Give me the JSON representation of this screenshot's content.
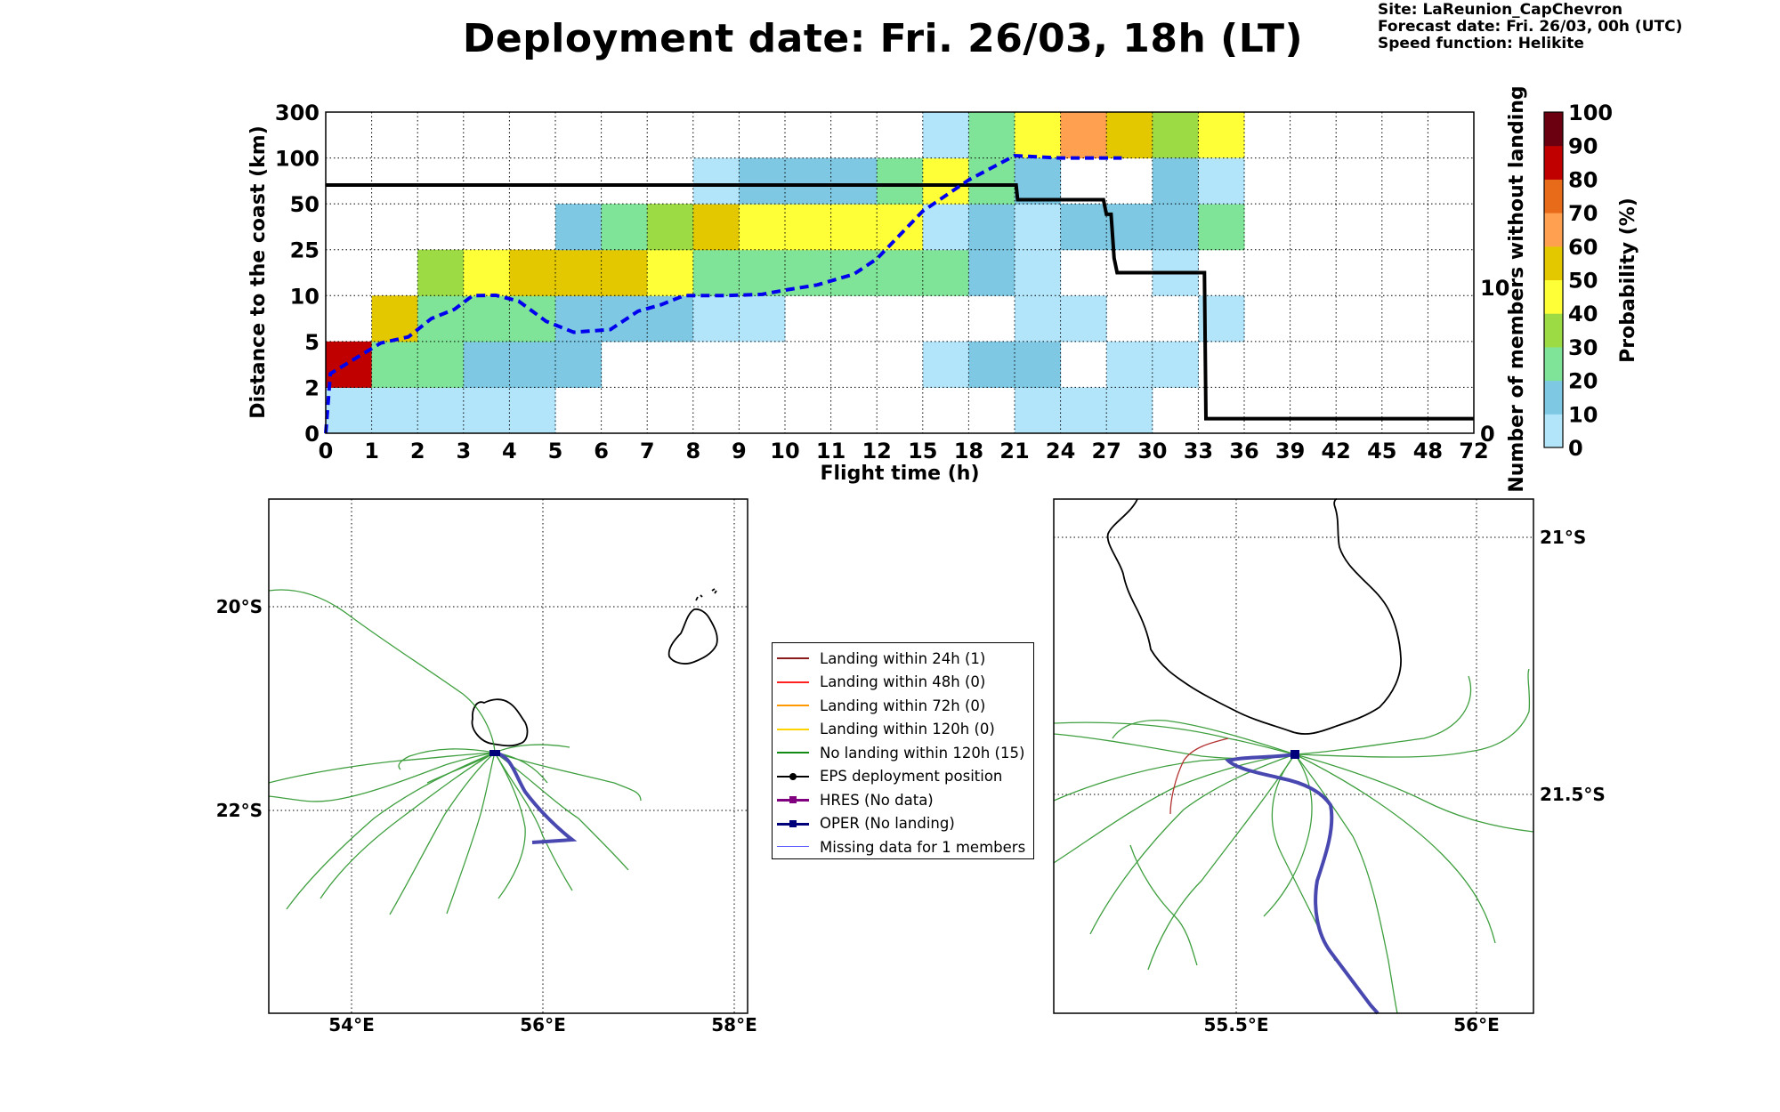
{
  "header": {
    "title": "Deployment date: Fri. 26/03, 18h (LT)",
    "site": "Site: LaReunion_CapChevron",
    "forecast": "Forecast date: Fri. 26/03, 00h (UTC)",
    "speed": "Speed function: Helikite"
  },
  "chart_data": [
    {
      "type": "heatmap",
      "xlabel": "Flight time (h)",
      "ylabel": "Distance to the coast (km)",
      "ylabel_right": "Number of members without landing",
      "colorbar_label": "Probability (%)",
      "x_ticks": [
        "0",
        "1",
        "2",
        "3",
        "4",
        "5",
        "6",
        "7",
        "8",
        "9",
        "10",
        "11",
        "12",
        "15",
        "18",
        "21",
        "24",
        "27",
        "30",
        "33",
        "36",
        "39",
        "42",
        "45",
        "48",
        "72"
      ],
      "y_ticks": [
        "0",
        "2",
        "5",
        "10",
        "25",
        "50",
        "100",
        "300"
      ],
      "y_right_ticks": [
        "0",
        "10"
      ],
      "colorbar": {
        "ticks": [
          "0",
          "10",
          "20",
          "30",
          "40",
          "50",
          "60",
          "70",
          "80",
          "90",
          "100"
        ],
        "colors": [
          "#b3e5fa",
          "#7ec8e3",
          "#80e498",
          "#9ddb45",
          "#ffff38",
          "#e3c800",
          "#ff9f50",
          "#e86b1a",
          "#c00000",
          "#6b0010"
        ]
      },
      "cells": [
        [
          0,
          0,
          0
        ],
        [
          1,
          0,
          0
        ],
        [
          2,
          0,
          0
        ],
        [
          3,
          0,
          0
        ],
        [
          4,
          0,
          0
        ],
        [
          0,
          1,
          8
        ],
        [
          1,
          1,
          2
        ],
        [
          2,
          1,
          2
        ],
        [
          3,
          1,
          1
        ],
        [
          4,
          1,
          1
        ],
        [
          5,
          1,
          1
        ],
        [
          1,
          2,
          5
        ],
        [
          2,
          2,
          2
        ],
        [
          3,
          2,
          2
        ],
        [
          4,
          2,
          2
        ],
        [
          5,
          2,
          1
        ],
        [
          6,
          2,
          1
        ],
        [
          7,
          2,
          1
        ],
        [
          8,
          2,
          0
        ],
        [
          9,
          2,
          0
        ],
        [
          2,
          3,
          3
        ],
        [
          3,
          3,
          4
        ],
        [
          4,
          3,
          5
        ],
        [
          5,
          3,
          5
        ],
        [
          6,
          3,
          5
        ],
        [
          7,
          3,
          4
        ],
        [
          8,
          3,
          2
        ],
        [
          9,
          3,
          2
        ],
        [
          10,
          3,
          2
        ],
        [
          11,
          3,
          2
        ],
        [
          12,
          3,
          2
        ],
        [
          13,
          3,
          2
        ],
        [
          14,
          3,
          1
        ],
        [
          5,
          4,
          1
        ],
        [
          6,
          4,
          2
        ],
        [
          7,
          4,
          3
        ],
        [
          8,
          4,
          5
        ],
        [
          9,
          4,
          4
        ],
        [
          10,
          4,
          4
        ],
        [
          11,
          4,
          4
        ],
        [
          12,
          4,
          4
        ],
        [
          13,
          4,
          0
        ],
        [
          14,
          4,
          1
        ],
        [
          8,
          5,
          0
        ],
        [
          9,
          5,
          1
        ],
        [
          10,
          5,
          1
        ],
        [
          11,
          5,
          1
        ],
        [
          12,
          5,
          2
        ],
        [
          13,
          5,
          4
        ],
        [
          14,
          5,
          2
        ],
        [
          13,
          6,
          0
        ],
        [
          14,
          6,
          2
        ],
        [
          15,
          6,
          4
        ],
        [
          16,
          6,
          6
        ],
        [
          17,
          6,
          5
        ],
        [
          18,
          6,
          3
        ],
        [
          19,
          6,
          4
        ],
        [
          15,
          0,
          0
        ],
        [
          16,
          0,
          0
        ],
        [
          17,
          0,
          0
        ],
        [
          13,
          1,
          0
        ],
        [
          14,
          1,
          1
        ],
        [
          15,
          1,
          1
        ],
        [
          17,
          1,
          0
        ],
        [
          18,
          1,
          0
        ],
        [
          15,
          2,
          0
        ],
        [
          16,
          2,
          0
        ],
        [
          19,
          2,
          0
        ],
        [
          15,
          3,
          0
        ],
        [
          18,
          3,
          0
        ],
        [
          15,
          4,
          0
        ],
        [
          16,
          4,
          1
        ],
        [
          17,
          4,
          1
        ],
        [
          18,
          4,
          1
        ],
        [
          19,
          4,
          2
        ],
        [
          15,
          5,
          1
        ],
        [
          18,
          5,
          1
        ],
        [
          19,
          5,
          0
        ]
      ],
      "members_without_landing": [
        [
          0,
          17
        ],
        [
          21.1,
          17
        ],
        [
          21.2,
          16
        ],
        [
          26.8,
          16
        ],
        [
          27.0,
          15
        ],
        [
          27.3,
          15
        ],
        [
          27.5,
          12
        ],
        [
          27.7,
          11
        ],
        [
          28.0,
          11
        ],
        [
          33.4,
          11
        ],
        [
          33.5,
          1
        ],
        [
          72,
          1
        ]
      ],
      "mean_distance_km": [
        [
          0,
          0
        ],
        [
          0.1,
          2.9
        ],
        [
          1.2,
          4.9
        ],
        [
          1.8,
          5.5
        ],
        [
          2.3,
          7.5
        ],
        [
          2.8,
          8.5
        ],
        [
          3.2,
          10
        ],
        [
          3.7,
          10.1
        ],
        [
          4.2,
          9.4
        ],
        [
          4.8,
          7.2
        ],
        [
          5.4,
          6.0
        ],
        [
          6.2,
          6.3
        ],
        [
          6.8,
          8.3
        ],
        [
          7.3,
          9
        ],
        [
          7.8,
          10
        ],
        [
          8.7,
          10
        ],
        [
          9.5,
          10.4
        ],
        [
          10,
          11.8
        ],
        [
          10.7,
          13.5
        ],
        [
          11.5,
          17
        ],
        [
          12,
          22
        ],
        [
          15,
          46
        ],
        [
          18,
          76
        ],
        [
          21,
          110
        ],
        [
          24,
          100
        ],
        [
          27,
          100
        ],
        [
          28,
          100
        ]
      ]
    }
  ],
  "maps": {
    "left": {
      "lon_ticks": [
        "54°E",
        "56°E",
        "58°E"
      ],
      "lat_ticks": [
        "20°S",
        "22°S"
      ]
    },
    "right": {
      "lon_ticks": [
        "55.5°E",
        "56°E"
      ],
      "lat_ticks": [
        "21°S",
        "21.5°S"
      ]
    }
  },
  "legend": [
    {
      "label": "Landing within 24h (1)",
      "color": "#8b1a1a",
      "kind": "line"
    },
    {
      "label": "Landing within 48h (0)",
      "color": "#ff2020",
      "kind": "line"
    },
    {
      "label": "Landing within 72h (0)",
      "color": "#ff9900",
      "kind": "line"
    },
    {
      "label": "Landing within 120h (0)",
      "color": "#ffd400",
      "kind": "line"
    },
    {
      "label": "No landing within 120h (15)",
      "color": "#138a13",
      "kind": "line"
    },
    {
      "label": "EPS deployment position",
      "color": "#000000",
      "kind": "dot"
    },
    {
      "label": "HRES (No data)",
      "color": "#800080",
      "kind": "square"
    },
    {
      "label": "OPER (No landing)",
      "color": "#00007a",
      "kind": "square"
    },
    {
      "label": "Missing data for 1 members",
      "color": "#5a5aff",
      "kind": "thin"
    }
  ]
}
